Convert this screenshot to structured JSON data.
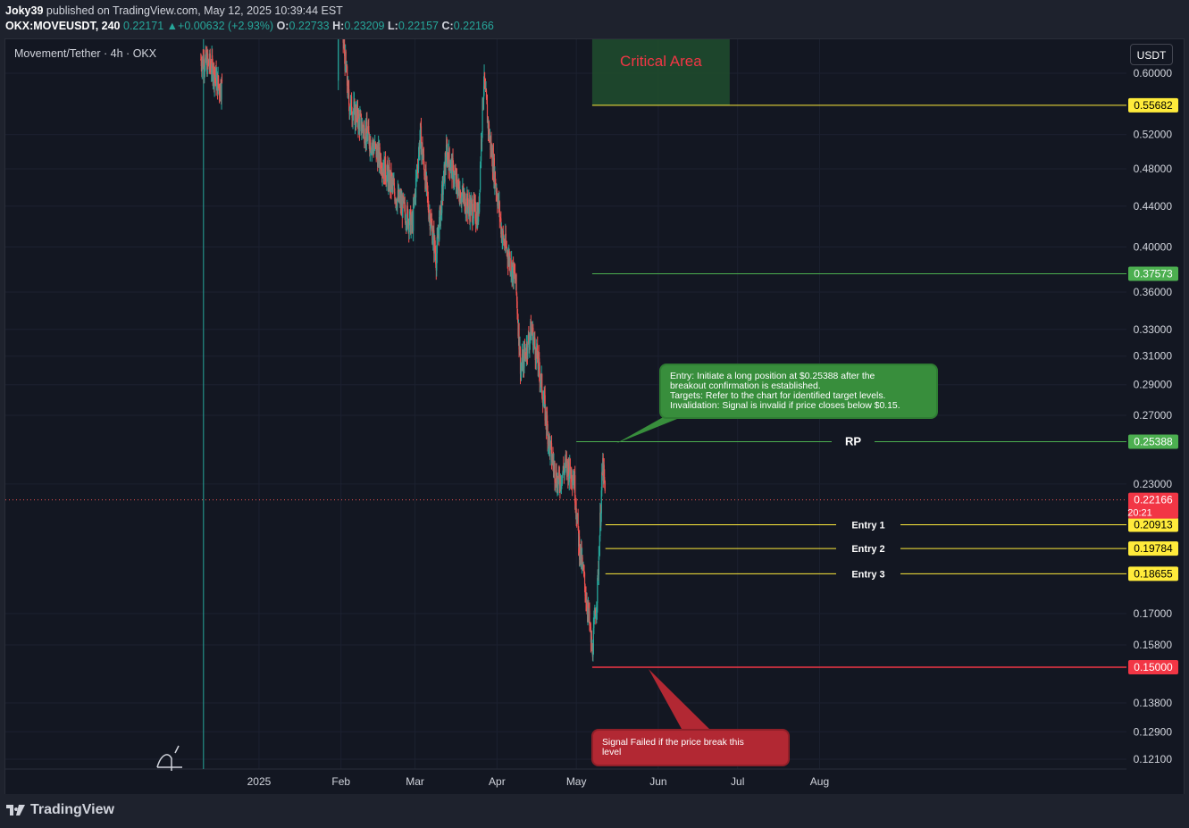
{
  "header": {
    "author": "Joky39",
    "published_text": "published on TradingView.com, May 12, 2025 10:39:44 EST",
    "symbol": "OKX:MOVEUSDT, 240",
    "last": "0.22171",
    "change": "+0.00632 (+2.93%)",
    "open": "0.22733",
    "high": "0.23209",
    "low": "0.22157",
    "close": "0.22166"
  },
  "legend": {
    "name": "Movement/Tether · 4h · OKX"
  },
  "currency_button": "USDT",
  "footer": {
    "brand": "TradingView"
  },
  "colors": {
    "bull": "#26a69a",
    "bear": "#ef5350",
    "grid": "#1f2430",
    "target": "#4caf50",
    "entry": "#ffeb3b",
    "stop": "#f23645",
    "critical": "#1f4a2e"
  },
  "chart_data": {
    "type": "candlestick",
    "x_range": [
      "2024-12-11",
      "2025-08-31"
    ],
    "y_scale": "log",
    "y_ticks": [
      0.6,
      0.52,
      0.48,
      0.44,
      0.4,
      0.36,
      0.33,
      0.31,
      0.29,
      0.27,
      0.23,
      0.17,
      0.158,
      0.138,
      0.129,
      0.121
    ],
    "y_tick_labels": [
      "0.60000",
      "0.52000",
      "0.48000",
      "0.44000",
      "0.40000",
      "0.36000",
      "0.33000",
      "0.31000",
      "0.29000",
      "0.27000",
      "0.23000",
      "0.17000",
      "0.15800",
      "0.13800",
      "0.12900",
      "0.12100"
    ],
    "x_ticks": [
      {
        "label": "2025",
        "date": "2025-01-01"
      },
      {
        "label": "Feb",
        "date": "2025-02-01"
      },
      {
        "label": "Mar",
        "date": "2025-03-01"
      },
      {
        "label": "Apr",
        "date": "2025-04-01"
      },
      {
        "label": "May",
        "date": "2025-05-01"
      },
      {
        "label": "Jun",
        "date": "2025-06-01"
      },
      {
        "label": "Jul",
        "date": "2025-07-01"
      },
      {
        "label": "Aug",
        "date": "2025-08-01"
      }
    ],
    "price_path": [
      [
        "2024-12-10",
        0.62
      ],
      [
        "2024-12-14",
        0.61
      ],
      [
        "2024-12-17",
        0.58
      ],
      [
        "2025-02-01",
        0.68
      ],
      [
        "2025-02-04",
        0.56
      ],
      [
        "2025-02-09",
        0.53
      ],
      [
        "2025-02-16",
        0.49
      ],
      [
        "2025-02-22",
        0.45
      ],
      [
        "2025-02-28",
        0.42
      ],
      [
        "2025-03-03",
        0.52
      ],
      [
        "2025-03-06",
        0.44
      ],
      [
        "2025-03-09",
        0.39
      ],
      [
        "2025-03-13",
        0.5
      ],
      [
        "2025-03-17",
        0.46
      ],
      [
        "2025-03-21",
        0.44
      ],
      [
        "2025-03-25",
        0.43
      ],
      [
        "2025-03-27",
        0.59
      ],
      [
        "2025-03-29",
        0.52
      ],
      [
        "2025-04-03",
        0.41
      ],
      [
        "2025-04-08",
        0.37
      ],
      [
        "2025-04-10",
        0.3
      ],
      [
        "2025-04-14",
        0.33
      ],
      [
        "2025-04-17",
        0.3
      ],
      [
        "2025-04-21",
        0.25
      ],
      [
        "2025-04-24",
        0.23
      ],
      [
        "2025-04-27",
        0.24
      ],
      [
        "2025-04-30",
        0.235
      ],
      [
        "2025-05-02",
        0.2
      ],
      [
        "2025-05-05",
        0.175
      ],
      [
        "2025-05-07",
        0.155
      ],
      [
        "2025-05-09",
        0.18
      ],
      [
        "2025-05-10",
        0.21
      ],
      [
        "2025-05-11",
        0.24
      ],
      [
        "2025-05-12",
        0.2217
      ]
    ],
    "critical_area": {
      "label": "Critical Area",
      "from": "2025-05-07",
      "to": "2025-06-28",
      "low": 0.55682,
      "high": 0.65
    },
    "levels": [
      {
        "name": "critical-top",
        "value": 0.55682,
        "label": "0.55682",
        "color": "#ffeb3b",
        "text_color": "#000000",
        "start": "2025-05-07"
      },
      {
        "name": "target",
        "value": 0.37573,
        "label": "0.37573",
        "color": "#4caf50",
        "text_color": "#ffffff",
        "start": "2025-05-07"
      },
      {
        "name": "rp",
        "value": 0.25388,
        "label": "0.25388",
        "color": "#4caf50",
        "text_color": "#ffffff",
        "start": "2025-05-01",
        "tag": "RP"
      },
      {
        "name": "entry-1",
        "value": 0.20913,
        "label": "0.20913",
        "color": "#ffeb3b",
        "text_color": "#000000",
        "start": "2025-05-12",
        "tag": "Entry 1"
      },
      {
        "name": "entry-2",
        "value": 0.19784,
        "label": "0.19784",
        "color": "#ffeb3b",
        "text_color": "#000000",
        "start": "2025-05-12",
        "tag": "Entry 2"
      },
      {
        "name": "entry-3",
        "value": 0.18655,
        "label": "0.18655",
        "color": "#ffeb3b",
        "text_color": "#000000",
        "start": "2025-05-12",
        "tag": "Entry 3"
      },
      {
        "name": "stop",
        "value": 0.15,
        "label": "0.15000",
        "color": "#f23645",
        "text_color": "#ffffff",
        "start": "2025-05-07"
      }
    ],
    "current_price": {
      "value": 0.22166,
      "label": "0.22166",
      "countdown": "20:21"
    },
    "annotations": {
      "entry_note": [
        "Entry: Initiate a long position at $0.25388 after the",
        "breakout confirmation is established.",
        "Targets: Refer to the chart for identified target levels.",
        "Invalidation: Signal is invalid if price closes below $0.15."
      ],
      "fail_note": [
        "Signal Failed if the price break this",
        "level"
      ]
    },
    "vertical_marker": "2024-12-11"
  }
}
